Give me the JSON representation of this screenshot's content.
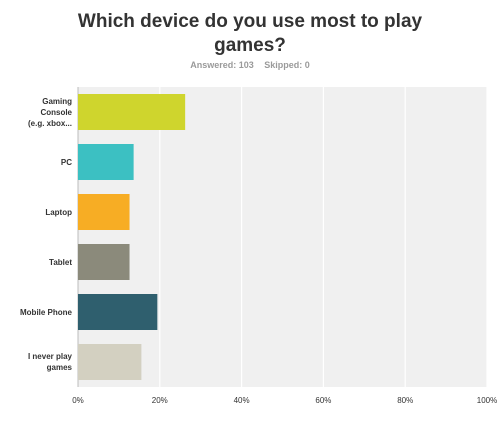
{
  "header": {
    "title": "Which device do you use most to play games?",
    "answered": "Answered: 103",
    "skipped": "Skipped: 0"
  },
  "chart_data": {
    "type": "bar",
    "orientation": "horizontal",
    "title": "Which device do you use most to play games?",
    "categories": [
      "Gaming Console (e.g. xbox...",
      "PC",
      "Laptop",
      "Tablet",
      "Mobile Phone",
      "I never play games"
    ],
    "category_display": [
      "Gaming\nConsole\n(e.g. xbox...",
      "PC",
      "Laptop",
      "Tablet",
      "Mobile Phone",
      "I never play\ngames"
    ],
    "values": [
      26.2,
      13.6,
      12.6,
      12.6,
      19.4,
      15.5
    ],
    "unit": "%",
    "colors": [
      "#cfd52d",
      "#3cc0c2",
      "#f7ad24",
      "#8b8a7b",
      "#2f5f6e",
      "#d3d0c1"
    ],
    "xlim": [
      0,
      100
    ],
    "x_ticks": [
      "0%",
      "20%",
      "40%",
      "60%",
      "80%",
      "100%"
    ],
    "grid": true,
    "legend": "none"
  }
}
